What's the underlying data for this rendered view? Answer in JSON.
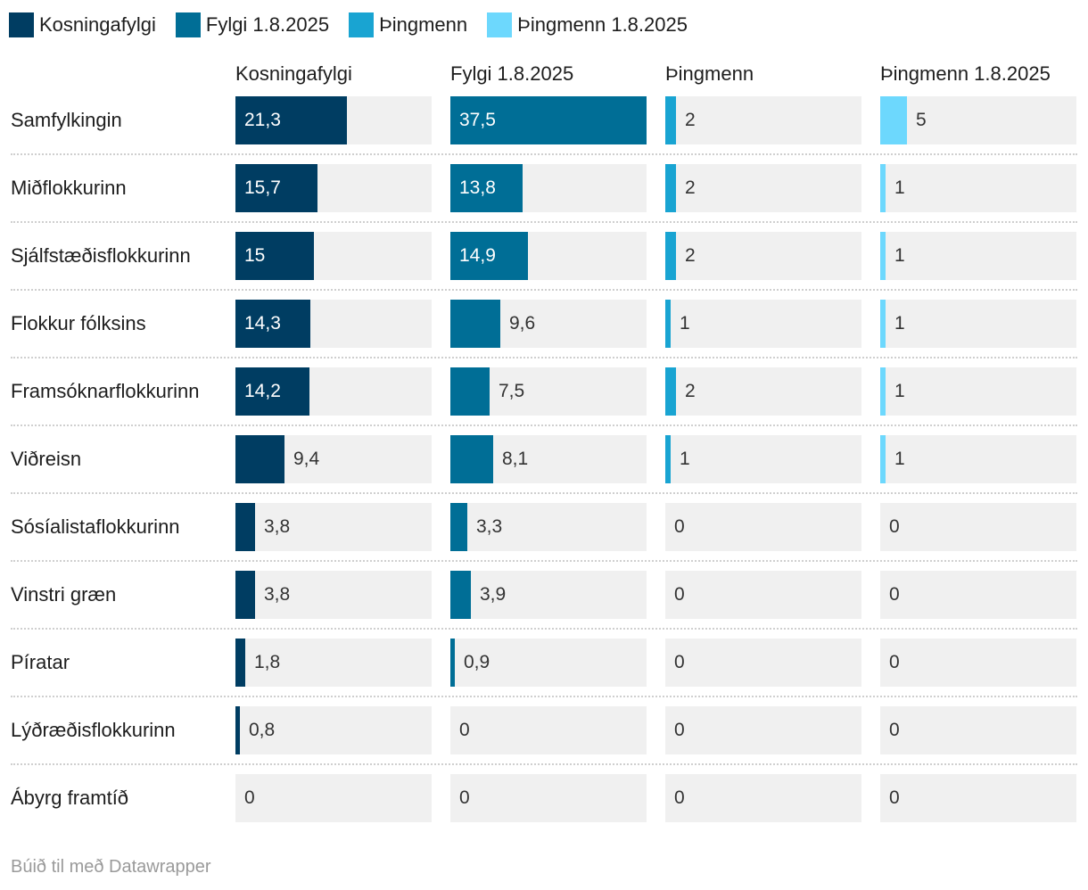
{
  "chart_data": {
    "type": "table",
    "columns": [
      {
        "name": "Kosningafylgi",
        "color": "#003d62",
        "max": 37.5
      },
      {
        "name": "Fylgi 1.8.2025",
        "color": "#006e96",
        "max": 37.5
      },
      {
        "name": "Þingmenn",
        "color": "#19a4d2",
        "max": 37
      },
      {
        "name": "Þingmenn 1.8.2025",
        "color": "#6dd8fd",
        "max": 37
      }
    ],
    "rows": [
      {
        "label": "Samfylkingin",
        "values": [
          "21,3",
          "37,5",
          "2",
          "5"
        ]
      },
      {
        "label": "Miðflokkurinn",
        "values": [
          "15,7",
          "13,8",
          "2",
          "1"
        ]
      },
      {
        "label": "Sjálfstæðisflokkurinn",
        "values": [
          "15",
          "14,9",
          "2",
          "1"
        ]
      },
      {
        "label": "Flokkur fólksins",
        "values": [
          "14,3",
          "9,6",
          "1",
          "1"
        ]
      },
      {
        "label": "Framsóknarflokkurinn",
        "values": [
          "14,2",
          "7,5",
          "2",
          "1"
        ]
      },
      {
        "label": "Viðreisn",
        "values": [
          "9,4",
          "8,1",
          "1",
          "1"
        ]
      },
      {
        "label": "Sósíalistaflokkurinn",
        "values": [
          "3,8",
          "3,3",
          "0",
          "0"
        ]
      },
      {
        "label": "Vinstri græn",
        "values": [
          "3,8",
          "3,9",
          "0",
          "0"
        ]
      },
      {
        "label": "Píratar",
        "values": [
          "1,8",
          "0,9",
          "0",
          "0"
        ]
      },
      {
        "label": "Lýðræðisflokkurinn",
        "values": [
          "0,8",
          "0",
          "0",
          "0"
        ]
      },
      {
        "label": "Ábyrg framtíð",
        "values": [
          "0",
          "0",
          "0",
          "0"
        ]
      }
    ]
  },
  "footer": "Búið til með Datawrapper"
}
